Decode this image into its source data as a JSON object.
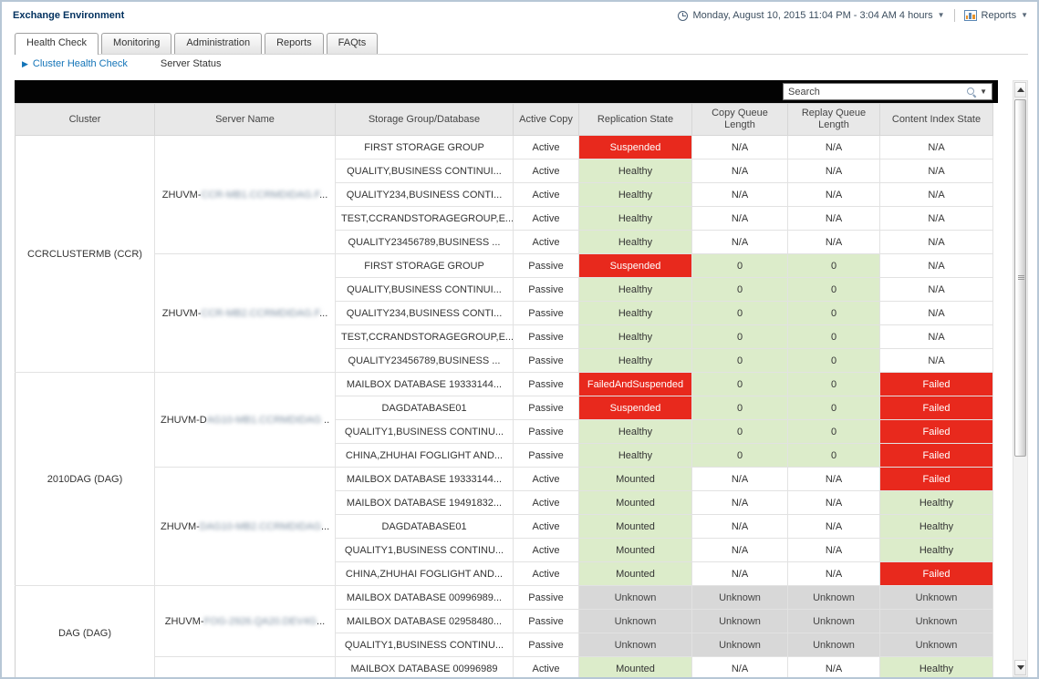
{
  "window": {
    "title": "Exchange Environment"
  },
  "topbar": {
    "timerange": "Monday, August 10, 2015 11:04 PM - 3:04 AM 4 hours",
    "reports_label": "Reports"
  },
  "tabs": [
    {
      "label": "Health Check",
      "active": true
    },
    {
      "label": "Monitoring",
      "active": false
    },
    {
      "label": "Administration",
      "active": false
    },
    {
      "label": "Reports",
      "active": false
    },
    {
      "label": "FAQts",
      "active": false
    }
  ],
  "subnav": {
    "active_item": "Cluster Health Check",
    "item2": "Server Status"
  },
  "search": {
    "placeholder": "Search"
  },
  "table": {
    "headers": [
      "Cluster",
      "Server Name",
      "Storage Group/Database",
      "Active Copy",
      "Replication State",
      "Copy Queue Length",
      "Replay Queue Length",
      "Content Index State"
    ],
    "status_colors": {
      "red": {
        "bg": "#e8291d",
        "fg": "#ffffff"
      },
      "green": {
        "bg": "#dcecca",
        "fg": "#333333"
      },
      "gray": {
        "bg": "#d8d8d8",
        "fg": "#444444"
      },
      "white": {
        "bg": "#ffffff",
        "fg": "#333333"
      }
    },
    "clusters": [
      {
        "name": "CCRCLUSTERMB (CCR)",
        "servers": [
          {
            "name_prefix": "ZHUVM-",
            "name_blurred": "CCR-MB1.CCRMDIDAG.F",
            "name_suffix": "...",
            "rows": [
              {
                "db": "FIRST STORAGE GROUP",
                "active_copy": "Active",
                "replication": [
                  "Suspended",
                  "red"
                ],
                "copy_queue": [
                  "N/A",
                  "white"
                ],
                "replay_queue": [
                  "N/A",
                  "white"
                ],
                "content_index": [
                  "N/A",
                  "white"
                ]
              },
              {
                "db": "QUALITY,BUSINESS CONTINUI...",
                "active_copy": "Active",
                "replication": [
                  "Healthy",
                  "green"
                ],
                "copy_queue": [
                  "N/A",
                  "white"
                ],
                "replay_queue": [
                  "N/A",
                  "white"
                ],
                "content_index": [
                  "N/A",
                  "white"
                ]
              },
              {
                "db": "QUALITY234,BUSINESS CONTI...",
                "active_copy": "Active",
                "replication": [
                  "Healthy",
                  "green"
                ],
                "copy_queue": [
                  "N/A",
                  "white"
                ],
                "replay_queue": [
                  "N/A",
                  "white"
                ],
                "content_index": [
                  "N/A",
                  "white"
                ]
              },
              {
                "db": "TEST,CCRANDSTORAGEGROUP,E...",
                "active_copy": "Active",
                "replication": [
                  "Healthy",
                  "green"
                ],
                "copy_queue": [
                  "N/A",
                  "white"
                ],
                "replay_queue": [
                  "N/A",
                  "white"
                ],
                "content_index": [
                  "N/A",
                  "white"
                ]
              },
              {
                "db": "QUALITY23456789,BUSINESS ...",
                "active_copy": "Active",
                "replication": [
                  "Healthy",
                  "green"
                ],
                "copy_queue": [
                  "N/A",
                  "white"
                ],
                "replay_queue": [
                  "N/A",
                  "white"
                ],
                "content_index": [
                  "N/A",
                  "white"
                ]
              }
            ]
          },
          {
            "name_prefix": "ZHUVM-",
            "name_blurred": "CCR-MB2.CCRMDIDAG.F",
            "name_suffix": "...",
            "rows": [
              {
                "db": "FIRST STORAGE GROUP",
                "active_copy": "Passive",
                "replication": [
                  "Suspended",
                  "red"
                ],
                "copy_queue": [
                  "0",
                  "green"
                ],
                "replay_queue": [
                  "0",
                  "green"
                ],
                "content_index": [
                  "N/A",
                  "white"
                ]
              },
              {
                "db": "QUALITY,BUSINESS CONTINUI...",
                "active_copy": "Passive",
                "replication": [
                  "Healthy",
                  "green"
                ],
                "copy_queue": [
                  "0",
                  "green"
                ],
                "replay_queue": [
                  "0",
                  "green"
                ],
                "content_index": [
                  "N/A",
                  "white"
                ]
              },
              {
                "db": "QUALITY234,BUSINESS CONTI...",
                "active_copy": "Passive",
                "replication": [
                  "Healthy",
                  "green"
                ],
                "copy_queue": [
                  "0",
                  "green"
                ],
                "replay_queue": [
                  "0",
                  "green"
                ],
                "content_index": [
                  "N/A",
                  "white"
                ]
              },
              {
                "db": "TEST,CCRANDSTORAGEGROUP,E...",
                "active_copy": "Passive",
                "replication": [
                  "Healthy",
                  "green"
                ],
                "copy_queue": [
                  "0",
                  "green"
                ],
                "replay_queue": [
                  "0",
                  "green"
                ],
                "content_index": [
                  "N/A",
                  "white"
                ]
              },
              {
                "db": "QUALITY23456789,BUSINESS ...",
                "active_copy": "Passive",
                "replication": [
                  "Healthy",
                  "green"
                ],
                "copy_queue": [
                  "0",
                  "green"
                ],
                "replay_queue": [
                  "0",
                  "green"
                ],
                "content_index": [
                  "N/A",
                  "white"
                ]
              }
            ]
          }
        ]
      },
      {
        "name": "2010DAG (DAG)",
        "servers": [
          {
            "name_prefix": "ZHUVM-D",
            "name_blurred": "AG10-MB1.CCRMDIDAG",
            "name_suffix": " ..",
            "rows": [
              {
                "db": "MAILBOX DATABASE 19333144...",
                "active_copy": "Passive",
                "replication": [
                  "FailedAndSuspended",
                  "red"
                ],
                "copy_queue": [
                  "0",
                  "green"
                ],
                "replay_queue": [
                  "0",
                  "green"
                ],
                "content_index": [
                  "Failed",
                  "red"
                ]
              },
              {
                "db": "DAGDATABASE01",
                "active_copy": "Passive",
                "replication": [
                  "Suspended",
                  "red"
                ],
                "copy_queue": [
                  "0",
                  "green"
                ],
                "replay_queue": [
                  "0",
                  "green"
                ],
                "content_index": [
                  "Failed",
                  "red"
                ]
              },
              {
                "db": "QUALITY1,BUSINESS CONTINU...",
                "active_copy": "Passive",
                "replication": [
                  "Healthy",
                  "green"
                ],
                "copy_queue": [
                  "0",
                  "green"
                ],
                "replay_queue": [
                  "0",
                  "green"
                ],
                "content_index": [
                  "Failed",
                  "red"
                ]
              },
              {
                "db": "CHINA,ZHUHAI FOGLIGHT AND...",
                "active_copy": "Passive",
                "replication": [
                  "Healthy",
                  "green"
                ],
                "copy_queue": [
                  "0",
                  "green"
                ],
                "replay_queue": [
                  "0",
                  "green"
                ],
                "content_index": [
                  "Failed",
                  "red"
                ]
              }
            ]
          },
          {
            "name_prefix": "ZHUVM-",
            "name_blurred": "DAG10-MB2.CCRMDIDAG",
            "name_suffix": "...",
            "rows": [
              {
                "db": "MAILBOX DATABASE 19333144...",
                "active_copy": "Active",
                "replication": [
                  "Mounted",
                  "green"
                ],
                "copy_queue": [
                  "N/A",
                  "white"
                ],
                "replay_queue": [
                  "N/A",
                  "white"
                ],
                "content_index": [
                  "Failed",
                  "red"
                ]
              },
              {
                "db": "MAILBOX DATABASE 19491832...",
                "active_copy": "Active",
                "replication": [
                  "Mounted",
                  "green"
                ],
                "copy_queue": [
                  "N/A",
                  "white"
                ],
                "replay_queue": [
                  "N/A",
                  "white"
                ],
                "content_index": [
                  "Healthy",
                  "green"
                ]
              },
              {
                "db": "DAGDATABASE01",
                "active_copy": "Active",
                "replication": [
                  "Mounted",
                  "green"
                ],
                "copy_queue": [
                  "N/A",
                  "white"
                ],
                "replay_queue": [
                  "N/A",
                  "white"
                ],
                "content_index": [
                  "Healthy",
                  "green"
                ]
              },
              {
                "db": "QUALITY1,BUSINESS CONTINU...",
                "active_copy": "Active",
                "replication": [
                  "Mounted",
                  "green"
                ],
                "copy_queue": [
                  "N/A",
                  "white"
                ],
                "replay_queue": [
                  "N/A",
                  "white"
                ],
                "content_index": [
                  "Healthy",
                  "green"
                ]
              },
              {
                "db": "CHINA,ZHUHAI FOGLIGHT AND...",
                "active_copy": "Active",
                "replication": [
                  "Mounted",
                  "green"
                ],
                "copy_queue": [
                  "N/A",
                  "white"
                ],
                "replay_queue": [
                  "N/A",
                  "white"
                ],
                "content_index": [
                  "Failed",
                  "red"
                ]
              }
            ]
          }
        ]
      },
      {
        "name": "DAG (DAG)",
        "servers": [
          {
            "name_prefix": "ZHUVM-",
            "name_blurred": "FOG-2926.QA20.DEV4G",
            "name_suffix": "...",
            "rows": [
              {
                "db": "MAILBOX DATABASE 00996989...",
                "active_copy": "Passive",
                "replication": [
                  "Unknown",
                  "gray"
                ],
                "copy_queue": [
                  "Unknown",
                  "gray"
                ],
                "replay_queue": [
                  "Unknown",
                  "gray"
                ],
                "content_index": [
                  "Unknown",
                  "gray"
                ]
              },
              {
                "db": "MAILBOX DATABASE 02958480...",
                "active_copy": "Passive",
                "replication": [
                  "Unknown",
                  "gray"
                ],
                "copy_queue": [
                  "Unknown",
                  "gray"
                ],
                "replay_queue": [
                  "Unknown",
                  "gray"
                ],
                "content_index": [
                  "Unknown",
                  "gray"
                ]
              },
              {
                "db": "QUALITY1,BUSINESS CONTINU...",
                "active_copy": "Passive",
                "replication": [
                  "Unknown",
                  "gray"
                ],
                "copy_queue": [
                  "Unknown",
                  "gray"
                ],
                "replay_queue": [
                  "Unknown",
                  "gray"
                ],
                "content_index": [
                  "Unknown",
                  "gray"
                ]
              }
            ]
          },
          {
            "name_prefix": "",
            "name_blurred": "",
            "name_suffix": "",
            "rows": [
              {
                "db": "MAILBOX DATABASE 00996989",
                "active_copy": "Active",
                "replication": [
                  "Mounted",
                  "green"
                ],
                "copy_queue": [
                  "N/A",
                  "white"
                ],
                "replay_queue": [
                  "N/A",
                  "white"
                ],
                "content_index": [
                  "Healthy",
                  "green"
                ]
              }
            ]
          }
        ]
      }
    ]
  }
}
